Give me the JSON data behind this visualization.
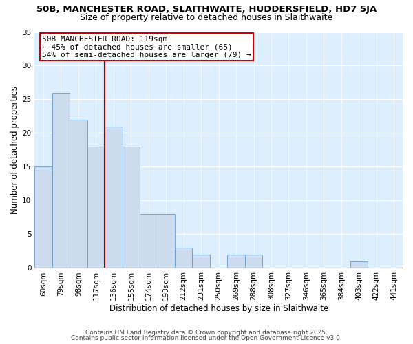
{
  "title_line1": "50B, MANCHESTER ROAD, SLAITHWAITE, HUDDERSFIELD, HD7 5JA",
  "title_line2": "Size of property relative to detached houses in Slaithwaite",
  "xlabel": "Distribution of detached houses by size in Slaithwaite",
  "ylabel": "Number of detached properties",
  "categories": [
    "60sqm",
    "79sqm",
    "98sqm",
    "117sqm",
    "136sqm",
    "155sqm",
    "174sqm",
    "193sqm",
    "212sqm",
    "231sqm",
    "250sqm",
    "269sqm",
    "288sqm",
    "308sqm",
    "327sqm",
    "346sqm",
    "365sqm",
    "384sqm",
    "403sqm",
    "422sqm",
    "441sqm"
  ],
  "values": [
    15,
    26,
    22,
    18,
    21,
    18,
    8,
    8,
    3,
    2,
    0,
    2,
    2,
    0,
    0,
    0,
    0,
    0,
    1,
    0,
    0
  ],
  "bar_color": "#ccdcee",
  "bar_edge_color": "#6699cc",
  "plot_bg_color": "#ddeeff",
  "fig_bg_color": "#ffffff",
  "grid_color": "#ffffff",
  "vline_x": 3.5,
  "vline_color": "#990000",
  "annotation_text": "50B MANCHESTER ROAD: 119sqm\n← 45% of detached houses are smaller (65)\n54% of semi-detached houses are larger (79) →",
  "annotation_box_color": "#ffffff",
  "annotation_box_edge": "#cc0000",
  "ylim": [
    0,
    35
  ],
  "yticks": [
    0,
    5,
    10,
    15,
    20,
    25,
    30,
    35
  ],
  "footer_line1": "Contains HM Land Registry data © Crown copyright and database right 2025.",
  "footer_line2": "Contains public sector information licensed under the Open Government Licence v3.0.",
  "title_fontsize": 9.5,
  "subtitle_fontsize": 9,
  "axis_label_fontsize": 8.5,
  "tick_fontsize": 7.5,
  "annotation_fontsize": 8,
  "footer_fontsize": 6.5
}
